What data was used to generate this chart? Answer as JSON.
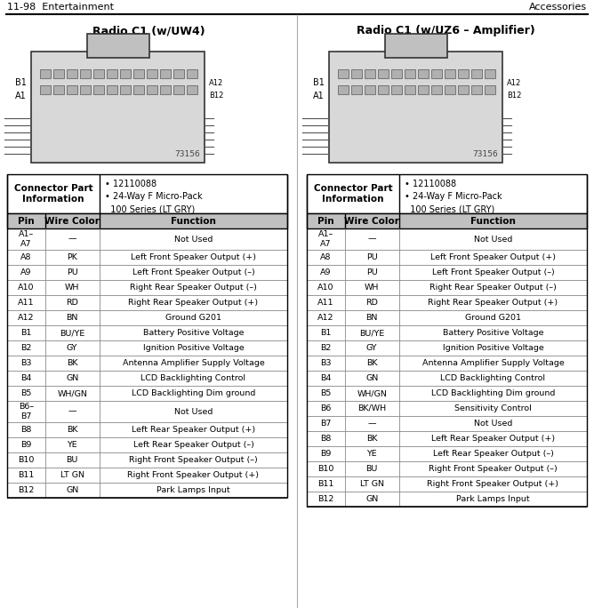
{
  "header_left": "11-98  Entertainment",
  "header_right": "Accessories",
  "title_left": "Radio C1 (w/UW4)",
  "title_right": "Radio C1 (w/UZ6 – Amplifier)",
  "connector_info_label": "Connector Part\nInformation",
  "connector_info_bullets": "• 12110088\n• 24-Way F Micro-Pack\n  100 Series (LT GRY)",
  "diagram_number": "73156",
  "col_headers": [
    "Pin",
    "Wire Color",
    "Function"
  ],
  "table_left": [
    [
      "A1–\nA7",
      "—",
      "Not Used"
    ],
    [
      "A8",
      "PK",
      "Left Front Speaker Output (+)"
    ],
    [
      "A9",
      "PU",
      "Left Front Speaker Output (–)"
    ],
    [
      "A10",
      "WH",
      "Right Rear Speaker Output (–)"
    ],
    [
      "A11",
      "RD",
      "Right Rear Speaker Output (+)"
    ],
    [
      "A12",
      "BN",
      "Ground G201"
    ],
    [
      "B1",
      "BU/YE",
      "Battery Positive Voltage"
    ],
    [
      "B2",
      "GY",
      "Ignition Positive Voltage"
    ],
    [
      "B3",
      "BK",
      "Antenna Amplifier Supply Voltage"
    ],
    [
      "B4",
      "GN",
      "LCD Backlighting Control"
    ],
    [
      "B5",
      "WH/GN",
      "LCD Backlighting Dim ground"
    ],
    [
      "B6–\nB7",
      "—",
      "Not Used"
    ],
    [
      "B8",
      "BK",
      "Left Rear Speaker Output (+)"
    ],
    [
      "B9",
      "YE",
      "Left Rear Speaker Output (–)"
    ],
    [
      "B10",
      "BU",
      "Right Front Speaker Output (–)"
    ],
    [
      "B11",
      "LT GN",
      "Right Front Speaker Output (+)"
    ],
    [
      "B12",
      "GN",
      "Park Lamps Input"
    ]
  ],
  "table_right": [
    [
      "A1–\nA7",
      "—",
      "Not Used"
    ],
    [
      "A8",
      "PU",
      "Left Front Speaker Output (+)"
    ],
    [
      "A9",
      "PU",
      "Left Front Speaker Output (–)"
    ],
    [
      "A10",
      "WH",
      "Right Rear Speaker Output (–)"
    ],
    [
      "A11",
      "RD",
      "Right Rear Speaker Output (+)"
    ],
    [
      "A12",
      "BN",
      "Ground G201"
    ],
    [
      "B1",
      "BU/YE",
      "Battery Positive Voltage"
    ],
    [
      "B2",
      "GY",
      "Ignition Positive Voltage"
    ],
    [
      "B3",
      "BK",
      "Antenna Amplifier Supply Voltage"
    ],
    [
      "B4",
      "GN",
      "LCD Backlighting Control"
    ],
    [
      "B5",
      "WH/GN",
      "LCD Backlighting Dim ground"
    ],
    [
      "B6",
      "BK/WH",
      "Sensitivity Control"
    ],
    [
      "B7",
      "—",
      "Not Used"
    ],
    [
      "B8",
      "BK",
      "Left Rear Speaker Output (+)"
    ],
    [
      "B9",
      "YE",
      "Left Rear Speaker Output (–)"
    ],
    [
      "B10",
      "BU",
      "Right Front Speaker Output (–)"
    ],
    [
      "B11",
      "LT GN",
      "Right Front Speaker Output (+)"
    ],
    [
      "B12",
      "GN",
      "Park Lamps Input"
    ]
  ],
  "bg_color": "#ffffff",
  "fig_width": 6.68,
  "fig_height": 6.84,
  "dpi": 100
}
